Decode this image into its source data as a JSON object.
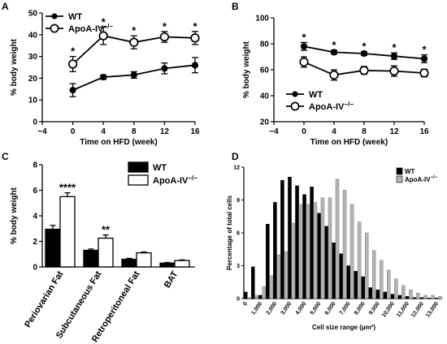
{
  "chart_data": [
    {
      "panel": "A",
      "type": "line",
      "xlabel": "Time on HFD (week)",
      "ylabel": "% body weight",
      "xlim": [
        -4,
        16
      ],
      "ylim": [
        0,
        50
      ],
      "xticks": [
        "−4",
        "0",
        "4",
        "8",
        "12",
        "16"
      ],
      "yticks": [
        "0",
        "10",
        "20",
        "30",
        "40",
        "50"
      ],
      "x": [
        0,
        4,
        8,
        12,
        16
      ],
      "series": [
        {
          "name": "WT",
          "marker": "filled",
          "values": [
            14.5,
            20.5,
            21.5,
            24.5,
            26
          ],
          "errors": [
            3,
            1,
            1.5,
            2.5,
            3.5
          ]
        },
        {
          "name": "ApoA-IV",
          "name_sup": "−/−",
          "marker": "open",
          "values": [
            26.5,
            39.5,
            36.5,
            39,
            38.5
          ],
          "errors": [
            3.5,
            4,
            3,
            2.5,
            3
          ]
        }
      ],
      "annotations": [
        {
          "x": 0,
          "text": "*"
        },
        {
          "x": 4,
          "text": "*"
        },
        {
          "x": 8,
          "text": "*"
        },
        {
          "x": 12,
          "text": "*"
        },
        {
          "x": 16,
          "text": "*"
        }
      ],
      "legend_position": "top-left"
    },
    {
      "panel": "B",
      "type": "line",
      "xlabel": "Time on HFD (week)",
      "ylabel": "% body weight",
      "xlim": [
        -4,
        16
      ],
      "ylim": [
        20,
        100
      ],
      "xticks": [
        "−4",
        "0",
        "4",
        "8",
        "12",
        "16"
      ],
      "yticks": [
        "20",
        "40",
        "60",
        "80",
        "100"
      ],
      "x": [
        0,
        4,
        8,
        12,
        16
      ],
      "series": [
        {
          "name": "WT",
          "marker": "filled",
          "values": [
            78,
            73.5,
            72.5,
            70.5,
            68.5
          ],
          "errors": [
            3,
            1.5,
            1.5,
            2.5,
            3
          ]
        },
        {
          "name": "ApoA-IV",
          "name_sup": "−/−",
          "marker": "open",
          "values": [
            66,
            56,
            59.5,
            59,
            57.5
          ],
          "errors": [
            4,
            4,
            3,
            4,
            3
          ]
        }
      ],
      "annotations": [
        {
          "x": 0,
          "text": "*"
        },
        {
          "x": 4,
          "text": "*"
        },
        {
          "x": 8,
          "text": "*"
        },
        {
          "x": 12,
          "text": "*"
        },
        {
          "x": 16,
          "text": "*"
        }
      ],
      "legend_position": "bottom-center"
    },
    {
      "panel": "C",
      "type": "bar",
      "ylabel": "% body weight",
      "ylim": [
        0,
        8
      ],
      "yticks": [
        "0",
        "2",
        "4",
        "6",
        "8"
      ],
      "categories": [
        "Periovarian Fat",
        "Subcutaneous Fat",
        "Retroperitoneal Fat",
        "BAT"
      ],
      "series": [
        {
          "name": "WT",
          "color": "#000000",
          "values": [
            2.95,
            1.3,
            0.6,
            0.3
          ],
          "errors": [
            0.3,
            0.1,
            0.07,
            0.05
          ]
        },
        {
          "name": "ApoA-IV",
          "name_sup": "−/−",
          "color": "#ffffff",
          "values": [
            5.5,
            2.25,
            1.1,
            0.5
          ],
          "errors": [
            0.3,
            0.25,
            0.07,
            0.05
          ]
        }
      ],
      "annotations": [
        {
          "category": 0,
          "text": "****"
        },
        {
          "category": 1,
          "text": "**"
        }
      ],
      "legend_position": "top-right"
    },
    {
      "panel": "D",
      "type": "bar",
      "ylabel": "Percentage of total cells",
      "xlabel": "Cell size range (µm²)",
      "ylim": [
        0,
        12
      ],
      "yticks": [
        "0",
        "3",
        "6",
        "9",
        "12"
      ],
      "xticks": [
        "0",
        "1,000",
        "2,000",
        "3,000",
        "4,000",
        "5,000",
        "6,000",
        "7,000",
        "8,000",
        "9,000",
        "10,000",
        "11,000",
        "12,000",
        "13,000"
      ],
      "bin_width": 250,
      "series": [
        {
          "name": "WT",
          "color": "#000000",
          "values": [
            0.6,
            2.9,
            0.3,
            6.8,
            8.8,
            10.8,
            11.1,
            10.3,
            9.5,
            10.2,
            7.8,
            6.6,
            5.1,
            4.1,
            3.0,
            2.5,
            2.0,
            1.0,
            0.8,
            0.6,
            0.4,
            0.3,
            0.2,
            0.1,
            0.1,
            0.05,
            0.05
          ]
        },
        {
          "name": "ApoA-IV",
          "name_sup": "−/−",
          "color": "#b3b3b3",
          "values": [
            0.1,
            0.3,
            1.1,
            2.1,
            4.0,
            4.3,
            6.9,
            8.6,
            8.6,
            8.8,
            9.2,
            9.2,
            10.9,
            9.9,
            8.6,
            7.0,
            6.0,
            4.4,
            3.5,
            2.6,
            1.8,
            1.2,
            0.8,
            0.5,
            0.3,
            0.3,
            0.2
          ]
        }
      ],
      "legend_position": "top-center"
    }
  ],
  "labels": {
    "A": "A",
    "B": "B",
    "C": "C",
    "D": "D"
  }
}
